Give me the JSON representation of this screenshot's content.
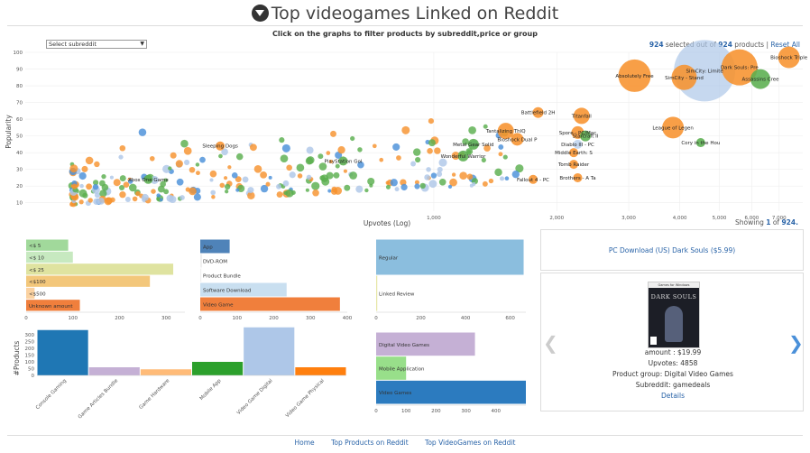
{
  "header": {
    "title": "Top videogames Linked on Reddit",
    "instructions": "Click on the graphs to filter products by subreddit,price or group"
  },
  "filter": {
    "subreddit_placeholder": "Select subreddit"
  },
  "selection": {
    "count": "924",
    "middle": " selected out of ",
    "total": "924",
    "suffix": " products | ",
    "reset": "Reset All"
  },
  "showing": {
    "prefix": "Showing ",
    "current": "1",
    "of": " of ",
    "total": "924."
  },
  "colors": {
    "orange": "#f7922e",
    "green": "#5aae4e",
    "lightblue": "#aec7e8",
    "blue": "#4a90d9",
    "link": "#2a64a8"
  },
  "chart_data": [
    {
      "type": "scatter",
      "name": "popularity-vs-upvotes",
      "xlabel": "Upvotes (Log)",
      "ylabel": "Popularity",
      "xscale": "log",
      "xlim": [
        100,
        8000
      ],
      "ylim": [
        5,
        100
      ],
      "xticks": [
        "1,000",
        "2,000",
        "3,000",
        "4,000",
        "5,000",
        "6,000",
        "7,000"
      ],
      "yticks": [
        10,
        20,
        30,
        40,
        50,
        60,
        70,
        80,
        90,
        100
      ],
      "grid": true,
      "labeled_points": [
        {
          "label": "Bioshock Triple",
          "x": 7400,
          "y": 97,
          "r": 12,
          "color": "orange"
        },
        {
          "label": "SimCity: Limite",
          "x": 4600,
          "y": 89,
          "r": 34,
          "color": "lightblue"
        },
        {
          "label": "SimCity - Stand",
          "x": 4100,
          "y": 85,
          "r": 14,
          "color": "orange"
        },
        {
          "label": "Dark Souls: Pre",
          "x": 5600,
          "y": 91,
          "r": 20,
          "color": "orange"
        },
        {
          "label": "Assassins Cree",
          "x": 6300,
          "y": 84,
          "r": 11,
          "color": "green"
        },
        {
          "label": "Absolutely Free",
          "x": 3100,
          "y": 86,
          "r": 18,
          "color": "orange"
        },
        {
          "label": "League of Legen",
          "x": 3850,
          "y": 55,
          "r": 12,
          "color": "orange"
        },
        {
          "label": "Cory in the Hou",
          "x": 4500,
          "y": 46,
          "r": 5,
          "color": "green"
        },
        {
          "label": "Battlefield 2H",
          "x": 1800,
          "y": 64,
          "r": 6,
          "color": "orange"
        },
        {
          "label": "Titanfall",
          "x": 2300,
          "y": 62,
          "r": 9,
          "color": "orange"
        },
        {
          "label": "Spore - PC/Mac",
          "x": 2250,
          "y": 52,
          "r": 7,
          "color": "orange"
        },
        {
          "label": "Starcraft II",
          "x": 2350,
          "y": 50,
          "r": 6,
          "color": "green"
        },
        {
          "label": "Diablo III - PC",
          "x": 2250,
          "y": 45,
          "r": 5,
          "color": "lightblue"
        },
        {
          "label": "Middle Earth: S",
          "x": 2200,
          "y": 40,
          "r": 5,
          "color": "orange"
        },
        {
          "label": "Tomb Raider",
          "x": 2200,
          "y": 33,
          "r": 5,
          "color": "orange"
        },
        {
          "label": "Brothers - A Ta",
          "x": 2250,
          "y": 25,
          "r": 5,
          "color": "orange"
        },
        {
          "label": "Fallout 4 - PC",
          "x": 1750,
          "y": 24,
          "r": 5,
          "color": "orange"
        },
        {
          "label": "Bioshock Dual P",
          "x": 1600,
          "y": 48,
          "r": 7,
          "color": "orange"
        },
        {
          "label": "Tantalizing ThIQ",
          "x": 1500,
          "y": 53,
          "r": 9,
          "color": "orange"
        },
        {
          "label": "Metal Gear Solid",
          "x": 1250,
          "y": 45,
          "r": 6,
          "color": "green"
        },
        {
          "label": "Wonderful Warrior",
          "x": 1180,
          "y": 38,
          "r": 6,
          "color": "green"
        },
        {
          "label": "Sleeping Dogs",
          "x": 300,
          "y": 44,
          "r": 5,
          "color": "orange"
        },
        {
          "label": "PlayStation Gol",
          "x": 600,
          "y": 35,
          "r": 5,
          "color": "green"
        },
        {
          "label": "Xbox One Game",
          "x": 200,
          "y": 24,
          "r": 5,
          "color": "green"
        }
      ]
    },
    {
      "type": "bar",
      "orientation": "horizontal",
      "name": "price-bands",
      "categories": [
        "<$ 5",
        "<$ 10",
        "<$ 25",
        "<$100",
        "<$500",
        "Unknown amount"
      ],
      "values": [
        90,
        100,
        315,
        265,
        18,
        115
      ],
      "colors": [
        "#a1d99b",
        "#c7e9c0",
        "#dfe3a0",
        "#f3c77b",
        "#fbd2a1",
        "#f07f3c"
      ],
      "xticks": [
        0,
        100,
        200,
        300
      ],
      "xlim": [
        0,
        340
      ]
    },
    {
      "type": "bar",
      "orientation": "horizontal",
      "name": "product-groups",
      "categories": [
        "App",
        "DVD-ROM",
        "Product Bundle",
        "Software Download",
        "Video Game"
      ],
      "values": [
        80,
        5,
        3,
        235,
        380
      ],
      "colors": [
        "#4f83b9",
        "#f0f0f0",
        "#f0f0f0",
        "#c9dff0",
        "#f07f3c"
      ],
      "xticks": [
        0,
        100,
        200,
        300,
        400
      ],
      "xlim": [
        0,
        400
      ]
    },
    {
      "type": "bar",
      "orientation": "horizontal",
      "name": "binding",
      "categories": [
        "Regular",
        "Linked Review"
      ],
      "values": [
        660,
        5
      ],
      "colors": [
        "#8bbede",
        "#e7e7a8"
      ],
      "xticks": [
        0,
        200,
        400,
        600
      ],
      "xlim": [
        0,
        670
      ]
    },
    {
      "type": "bar",
      "name": "subreddits",
      "ylabel": "#Products",
      "categories": [
        "Console Gaming",
        "Game Articles Bundle",
        "Game Hardware",
        "Mobile App",
        "Video Game Digital",
        "Video Game Physical"
      ],
      "values": [
        335,
        60,
        45,
        100,
        355,
        60
      ],
      "colors": [
        "#1f77b4",
        "#c5b0d5",
        "#ffbb78",
        "#2ca02c",
        "#aec7e8",
        "#ff7f0e"
      ],
      "yticks": [
        0,
        50,
        100,
        150,
        200,
        250,
        300
      ],
      "ylim": [
        0,
        360
      ]
    },
    {
      "type": "bar",
      "orientation": "horizontal",
      "name": "digital-groups",
      "categories": [
        "Digital Video Games",
        "Mobile Application",
        "Video Games"
      ],
      "values": [
        330,
        100,
        500
      ],
      "colors": [
        "#c5b0d5",
        "#98df8a",
        "#2c7bbf"
      ],
      "xticks": [
        0,
        100,
        200,
        300,
        400
      ],
      "xlim": [
        0,
        500
      ]
    }
  ],
  "product": {
    "title": "PC Download (US) Dark Souls ($5.99)",
    "cover_text": "DARK SOULS",
    "cover_header": "Games for Windows",
    "amount": "amount : $19.99",
    "upvotes": "Upvotes: 4858",
    "group": "Product group: Digital Video Games",
    "subreddit": "Subreddit: gamedeals",
    "details": "Details"
  },
  "footer": {
    "home": "Home",
    "top_products": "Top Products on Reddit",
    "top_videogames": "Top VideoGames on Reddit"
  }
}
